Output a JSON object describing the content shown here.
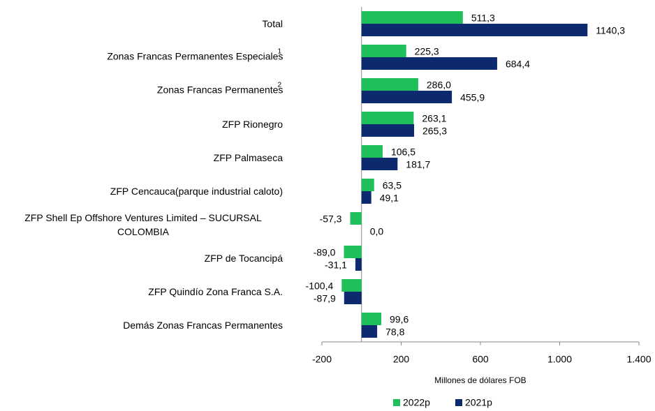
{
  "chart_data": {
    "type": "bar",
    "orientation": "horizontal",
    "categories": [
      "Total",
      "Zonas Francas Permanentes Especiales",
      "Zonas Francas Permanentes",
      "ZFP Rionegro",
      "ZFP Palmaseca",
      "ZFP Cencauca(parque industrial caloto)",
      "ZFP Shell Ep Offshore Ventures Limited – SUCURSAL COLOMBIA",
      "ZFP de Tocancipá",
      "ZFP Quindío Zona Franca S.A.",
      "Demás Zonas Francas Permanentes"
    ],
    "category_notes": [
      null,
      "1",
      "2",
      null,
      null,
      null,
      null,
      null,
      null,
      null
    ],
    "series": [
      {
        "name": "2022p",
        "color": "#1fc05a",
        "values": [
          511.3,
          225.3,
          286.0,
          263.1,
          106.5,
          63.5,
          -57.3,
          -89.0,
          -100.4,
          99.6
        ],
        "value_labels": [
          "511,3",
          "225,3",
          "286,0",
          "263,1",
          "106,5",
          "63,5",
          "-57,3",
          "-89,0",
          "-100,4",
          "99,6"
        ]
      },
      {
        "name": "2021p",
        "color": "#0e2a6e",
        "values": [
          1140.3,
          684.4,
          455.9,
          265.3,
          181.7,
          49.1,
          0.0,
          -31.1,
          -87.9,
          78.8
        ],
        "value_labels": [
          "1140,3",
          "684,4",
          "455,9",
          "265,3",
          "181,7",
          "49,1",
          "0,0",
          "-31,1",
          "-87,9",
          "78,8"
        ]
      }
    ],
    "xlabel": "Millones de dólares FOB",
    "xlim": [
      -200,
      1400
    ],
    "xticks": [
      -200,
      200,
      600,
      {
        "value": 1000,
        "label": "1.000"
      },
      {
        "value": 1400,
        "label": "1.400"
      }
    ],
    "legend": "bottom"
  }
}
